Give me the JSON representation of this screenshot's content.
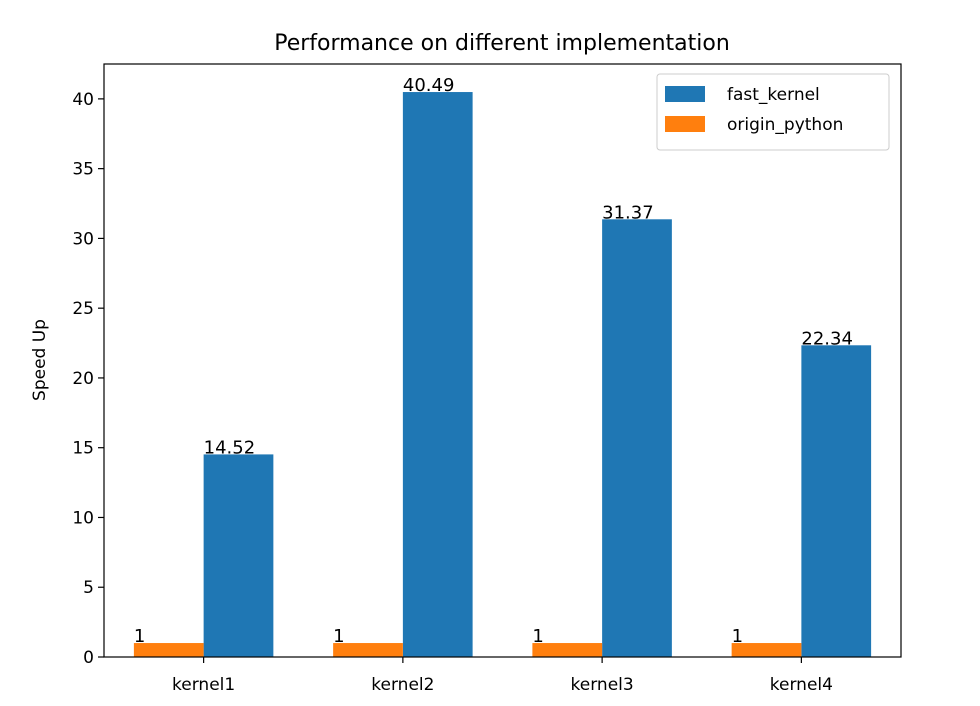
{
  "chart_data": {
    "type": "bar",
    "title": "Performance on different implementation",
    "xlabel": "",
    "ylabel": "Speed Up",
    "categories": [
      "kernel1",
      "kernel2",
      "kernel3",
      "kernel4"
    ],
    "ylim": [
      0,
      42.5
    ],
    "yticks": [
      0,
      5,
      10,
      15,
      20,
      25,
      30,
      35,
      40
    ],
    "grid": false,
    "legend_position": "top-right",
    "series": [
      {
        "name": "fast_kernel",
        "color": "#1f77b4",
        "values": [
          14.52,
          40.49,
          31.37,
          22.34
        ],
        "data_labels": [
          "14.52",
          "40.49",
          "31.37",
          "22.34"
        ]
      },
      {
        "name": "origin_python",
        "color": "#ff7f0e",
        "values": [
          1,
          1,
          1,
          1
        ],
        "data_labels": [
          "1",
          "1",
          "1",
          "1"
        ]
      }
    ]
  }
}
